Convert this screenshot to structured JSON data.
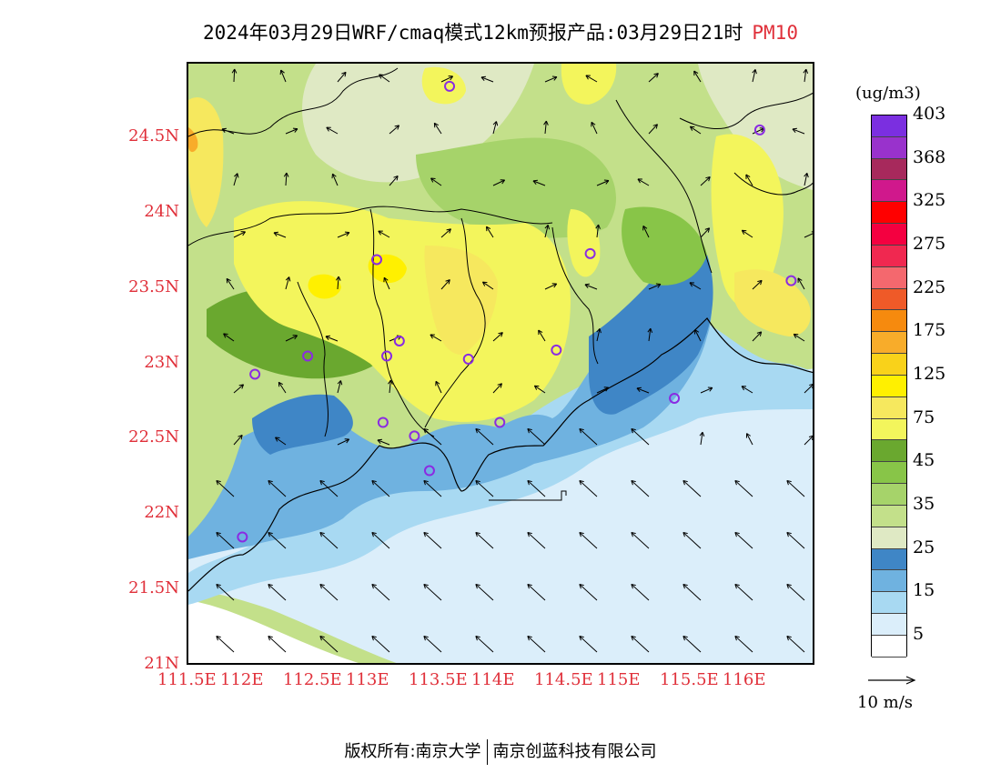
{
  "title": {
    "main": "2024年03月29日WRF/cmaq模式12km预报产品:03月29日21时",
    "species": "PM10"
  },
  "map": {
    "lat_range": [
      21.0,
      25.0
    ],
    "lon_range": [
      111.5,
      116.5
    ],
    "lat_ticks": [
      "24.5N",
      "24N",
      "23.5N",
      "23N",
      "22.5N",
      "22N",
      "21.5N",
      "21N"
    ],
    "lon_ticks": [
      "111.5E",
      "112E",
      "112.5E",
      "113E",
      "113.5E",
      "114E",
      "114.5E",
      "115E",
      "115.5E",
      "116E"
    ],
    "station_markers": [
      {
        "lon": 113.58,
        "lat": 24.85
      },
      {
        "lon": 116.05,
        "lat": 24.56
      },
      {
        "lon": 113.0,
        "lat": 23.7
      },
      {
        "lon": 114.7,
        "lat": 23.74
      },
      {
        "lon": 116.3,
        "lat": 23.56
      },
      {
        "lon": 113.18,
        "lat": 23.16
      },
      {
        "lon": 112.45,
        "lat": 23.06
      },
      {
        "lon": 113.08,
        "lat": 23.06
      },
      {
        "lon": 113.73,
        "lat": 23.04
      },
      {
        "lon": 114.43,
        "lat": 23.1
      },
      {
        "lon": 112.03,
        "lat": 22.94
      },
      {
        "lon": 115.37,
        "lat": 22.78
      },
      {
        "lon": 113.05,
        "lat": 22.62
      },
      {
        "lon": 113.98,
        "lat": 22.62
      },
      {
        "lon": 113.3,
        "lat": 22.53
      },
      {
        "lon": 113.42,
        "lat": 22.3
      },
      {
        "lon": 111.93,
        "lat": 21.86
      }
    ],
    "marker_color": "#8a2be2",
    "wind_direction": "from southeast over sea; weak and variable over land"
  },
  "colorbar": {
    "unit": "(ug/m3)",
    "colors": [
      "#ffffff",
      "#dbeefa",
      "#a8d9f2",
      "#6fb2e0",
      "#3f86c6",
      "#dfe9c4",
      "#c3e08a",
      "#a6d36a",
      "#88c548",
      "#6aa82f",
      "#f3f55c",
      "#f6e85e",
      "#fff000",
      "#f9d21a",
      "#f8ac2a",
      "#f68a0e",
      "#ef5a28",
      "#f4686e",
      "#f02850",
      "#f40040",
      "#ff0000",
      "#d0188c",
      "#a7295c",
      "#9932cc",
      "#7b2fe0"
    ],
    "labels": [
      "5",
      "15",
      "25",
      "35",
      "45",
      "75",
      "125",
      "175",
      "225",
      "275",
      "325",
      "368",
      "403"
    ]
  },
  "wind_reference": {
    "label": "10 m/s"
  },
  "footer": {
    "left": "版权所有:南京大学",
    "right": "南京创蓝科技有限公司"
  }
}
